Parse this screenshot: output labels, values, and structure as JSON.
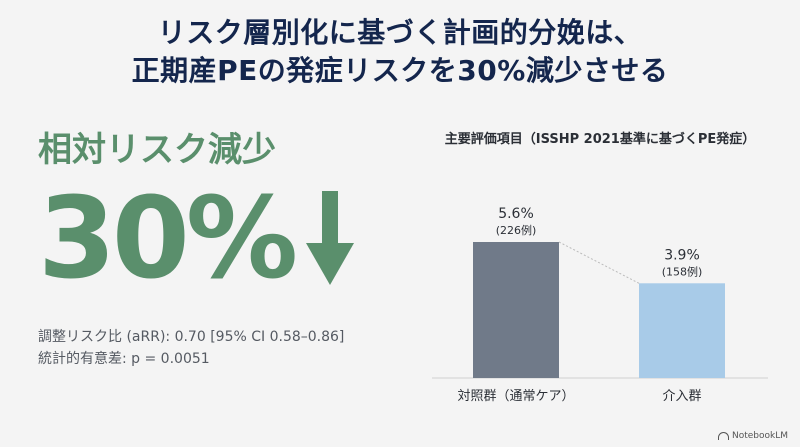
{
  "title": {
    "line1": "リスク層別化に基づく計画的分娩は、",
    "line2": "正期産PEの発症リスクを30%減少させる"
  },
  "metric": {
    "label": "相対リスク減少",
    "value": "30%",
    "icon": "down-arrow-icon",
    "color": "#5a8f6c"
  },
  "stats": {
    "arr": "調整リスク比 (aRR): 0.70 [95% CI 0.58–0.86]",
    "significance": "統計的有意差: p = 0.0051"
  },
  "chart_data": {
    "type": "bar",
    "title": "主要評価項目（ISSHP 2021基準に基づくPE発症）",
    "categories": [
      "対照群（通常ケア）",
      "介入群"
    ],
    "values": [
      5.6,
      3.9
    ],
    "value_labels": [
      "5.6%",
      "3.9%"
    ],
    "count_labels": [
      "(226例)",
      "(158例)"
    ],
    "colors": [
      "#707a89",
      "#a8cbe8"
    ],
    "ylim": [
      0,
      7
    ],
    "grid": false,
    "xlabel": "",
    "ylabel": ""
  },
  "footer": {
    "brand": "NotebookLM"
  }
}
